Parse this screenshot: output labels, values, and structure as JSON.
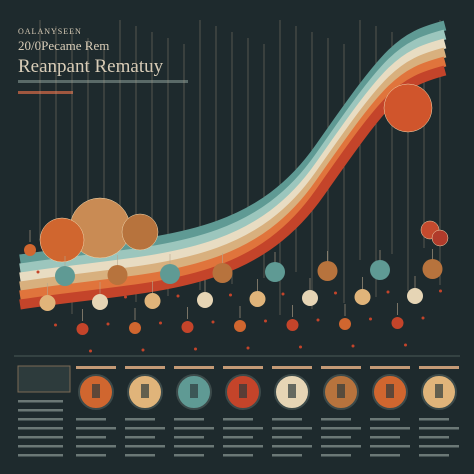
{
  "header": {
    "kicker": "OALANYSEEN",
    "subtitle": "20/0Pecame Rem",
    "title": "Reanpant Rematuy"
  }
}
